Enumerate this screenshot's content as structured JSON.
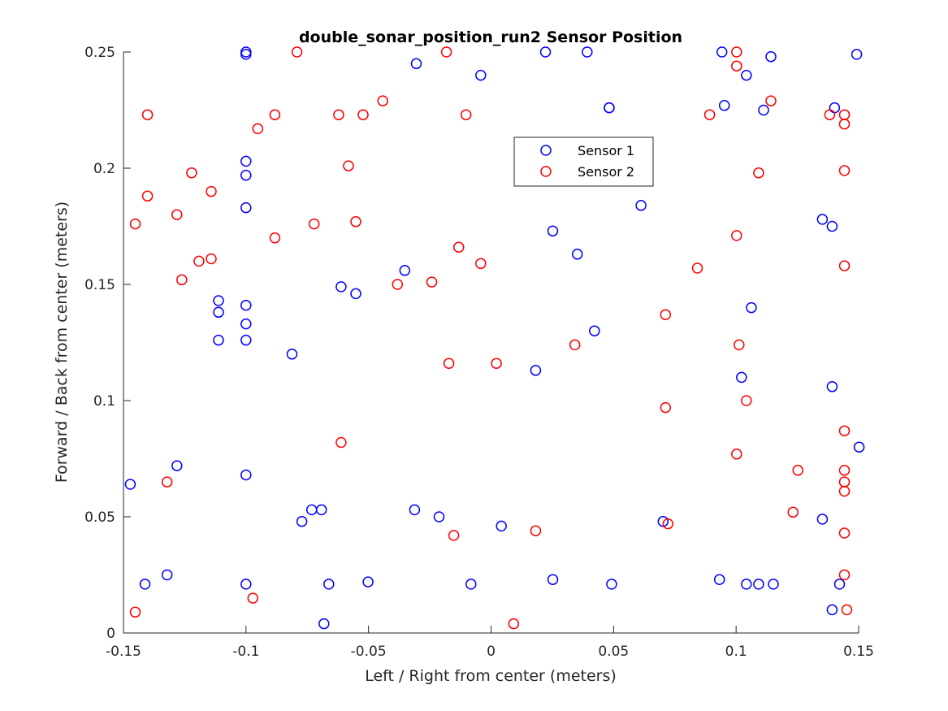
{
  "chart_data": {
    "type": "scatter",
    "title": "double_sonar_position_run2 Sensor Position",
    "xlabel": "Left / Right from center (meters)",
    "ylabel": "Forward / Back from center (meters)",
    "xlim": [
      -0.15,
      0.15
    ],
    "ylim": [
      0,
      0.25
    ],
    "xticks": [
      -0.15,
      -0.1,
      -0.05,
      0,
      0.05,
      0.1,
      0.15
    ],
    "xtick_labels": [
      "-0.15",
      "-0.1",
      "-0.05",
      "0",
      "0.05",
      "0.1",
      "0.15"
    ],
    "yticks": [
      0,
      0.05,
      0.1,
      0.15,
      0.2,
      0.25
    ],
    "ytick_labels": [
      "0",
      "0.05",
      "0.1",
      "0.15",
      "0.2",
      "0.25"
    ],
    "grid": false,
    "marker": "circle-open",
    "legend_position": "upper-center-right",
    "series": [
      {
        "name": "Sensor 1",
        "color": "#0000ff",
        "x": [
          -0.1,
          -0.1,
          -0.0305,
          0.0222,
          0.0392,
          0.0942,
          0.1142,
          0.1492,
          -0.0042,
          0.1042,
          0.0482,
          0.0482,
          0.0952,
          0.1112,
          0.1402,
          -0.1,
          -0.1,
          -0.1,
          0.0612,
          0.1352,
          0.1392,
          0.0252,
          0.0352,
          -0.0352,
          -0.1112,
          -0.1112,
          -0.1112,
          -0.1,
          -0.1,
          -0.1,
          -0.0612,
          -0.0552,
          0.1062,
          0.0422,
          -0.0812,
          0.0182,
          0.1022,
          0.1392,
          0.1502,
          -0.1282,
          -0.1,
          -0.1472,
          -0.0732,
          -0.0772,
          -0.0692,
          -0.0312,
          -0.0212,
          0.0042,
          0.0702,
          0.1352,
          -0.1322,
          -0.1412,
          -0.1,
          -0.0662,
          -0.0502,
          -0.0082,
          0.0252,
          0.0492,
          0.0932,
          0.1042,
          0.1092,
          0.1152,
          0.1422,
          0.1392,
          -0.0682
        ],
        "y": [
          0.25,
          0.249,
          0.245,
          0.25,
          0.25,
          0.25,
          0.248,
          0.249,
          0.24,
          0.24,
          0.226,
          0.226,
          0.227,
          0.225,
          0.226,
          0.203,
          0.197,
          0.183,
          0.184,
          0.178,
          0.175,
          0.173,
          0.163,
          0.156,
          0.143,
          0.138,
          0.126,
          0.141,
          0.133,
          0.126,
          0.149,
          0.146,
          0.14,
          0.13,
          0.12,
          0.113,
          0.11,
          0.106,
          0.08,
          0.072,
          0.068,
          0.064,
          0.053,
          0.048,
          0.053,
          0.053,
          0.05,
          0.046,
          0.048,
          0.049,
          0.025,
          0.021,
          0.021,
          0.021,
          0.022,
          0.021,
          0.023,
          0.021,
          0.023,
          0.021,
          0.021,
          0.021,
          0.021,
          0.01,
          0.004
        ]
      },
      {
        "name": "Sensor 2",
        "color": "#ff0000",
        "x": [
          -0.0792,
          -0.0182,
          0.1002,
          0.1002,
          -0.1402,
          -0.0882,
          -0.0622,
          -0.0522,
          -0.0442,
          -0.0952,
          -0.0102,
          0.0892,
          0.1142,
          0.1382,
          0.1442,
          0.1442,
          -0.1222,
          -0.0582,
          0.1092,
          0.1442,
          -0.1142,
          -0.1402,
          -0.1452,
          -0.1282,
          -0.0722,
          -0.0552,
          -0.0882,
          0.1002,
          -0.1192,
          -0.1142,
          -0.0132,
          -0.0042,
          -0.1262,
          -0.0382,
          -0.0242,
          0.0842,
          0.1442,
          0.0712,
          0.0342,
          0.1012,
          -0.0172,
          0.0022,
          0.1042,
          0.0712,
          0.1442,
          -0.0612,
          0.1002,
          0.1252,
          0.1442,
          0.1442,
          -0.1322,
          0.1442,
          0.1232,
          0.0722,
          0.0182,
          -0.0152,
          0.1442,
          0.1442,
          0.1452,
          -0.1452,
          -0.0972,
          0.0092
        ],
        "y": [
          0.25,
          0.25,
          0.25,
          0.244,
          0.223,
          0.223,
          0.223,
          0.223,
          0.229,
          0.217,
          0.223,
          0.223,
          0.229,
          0.223,
          0.223,
          0.219,
          0.198,
          0.201,
          0.198,
          0.199,
          0.19,
          0.188,
          0.176,
          0.18,
          0.176,
          0.177,
          0.17,
          0.171,
          0.16,
          0.161,
          0.166,
          0.159,
          0.152,
          0.15,
          0.151,
          0.157,
          0.158,
          0.137,
          0.124,
          0.124,
          0.116,
          0.116,
          0.1,
          0.097,
          0.087,
          0.082,
          0.077,
          0.07,
          0.07,
          0.065,
          0.065,
          0.061,
          0.052,
          0.047,
          0.044,
          0.042,
          0.043,
          0.025,
          0.01,
          0.009,
          0.015,
          0.004
        ]
      }
    ]
  }
}
